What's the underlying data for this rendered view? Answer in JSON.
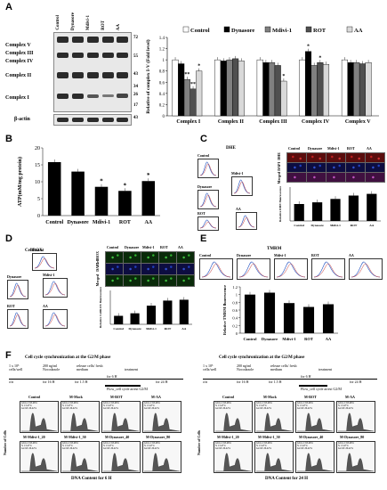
{
  "panels": {
    "a": "A",
    "b": "B",
    "c": "C",
    "d": "D",
    "e": "E",
    "f": "F"
  },
  "panelA": {
    "lanes": [
      "Control",
      "Dynasore",
      "Mdivi-1",
      "ROT",
      "AA"
    ],
    "complexes": [
      "Complex V",
      "Complex III",
      "Complex IV",
      "Complex II",
      "Complex I"
    ],
    "mw": [
      "72",
      "55",
      "43",
      "34",
      "26",
      "17",
      "43"
    ],
    "loading": "β-actin"
  },
  "chart_data": [
    {
      "type": "bar",
      "title": "",
      "ylabel": "Relative of complex I-V (Fold level)",
      "categories": [
        "Complex I",
        "Complex II",
        "Complex III",
        "Complex IV",
        "Complex V"
      ],
      "ylim": [
        0,
        1.4
      ],
      "yticks": [
        "0",
        "0.2",
        "0.4",
        "0.6",
        "0.8",
        "1",
        "1.2",
        "1.4"
      ],
      "legend": [
        "Control",
        "Dynasore",
        "Mdivi-1",
        "ROT",
        "AA"
      ],
      "series": [
        {
          "name": "Control",
          "values": [
            1.0,
            1.0,
            1.0,
            1.0,
            1.0
          ]
        },
        {
          "name": "Dynasore",
          "values": [
            0.93,
            0.98,
            0.95,
            1.15,
            0.95
          ]
        },
        {
          "name": "Mdivi-1",
          "values": [
            0.65,
            1.0,
            0.95,
            0.9,
            0.95
          ]
        },
        {
          "name": "ROT",
          "values": [
            0.48,
            1.02,
            0.9,
            0.95,
            0.93
          ]
        },
        {
          "name": "AA",
          "values": [
            0.8,
            0.98,
            0.62,
            0.92,
            0.95
          ]
        }
      ],
      "annotations": [
        "*",
        "**",
        "**",
        "*",
        "*",
        "*"
      ]
    },
    {
      "type": "bar",
      "ylabel": "ATP(mM/mg protein)",
      "categories": [
        "Control",
        "Dynasore",
        "Mdivi-1",
        "ROT",
        "AA"
      ],
      "values": [
        15.8,
        13.0,
        8.5,
        7.3,
        10.2
      ],
      "ylim": [
        0,
        20
      ],
      "yticks": [
        "0",
        "5",
        "10",
        "15",
        "20"
      ],
      "annotations": [
        "",
        "",
        "*",
        "*",
        "*"
      ]
    },
    {
      "type": "bar",
      "ylabel": "Relative DHE fluorescence",
      "categories": [
        "Control",
        "Dynasore",
        "Mdivi-1",
        "ROT",
        "AA"
      ],
      "values": [
        1.0,
        1.1,
        1.3,
        1.5,
        1.6
      ],
      "ylim": [
        0,
        2
      ]
    },
    {
      "type": "bar",
      "ylabel": "Relative CellROX fluorescence",
      "categories": [
        "Control",
        "Dynasore",
        "Mdivi-1",
        "ROT",
        "AA"
      ],
      "values": [
        1.0,
        1.3,
        2.2,
        2.8,
        2.9
      ],
      "ylim": [
        0,
        4
      ]
    },
    {
      "type": "bar",
      "ylabel": "Relative TMRM fluorescence",
      "categories": [
        "Control",
        "Dynasore",
        "Mdivi-1",
        "ROT",
        "AA"
      ],
      "values": [
        1.0,
        1.05,
        0.78,
        0.68,
        0.75
      ],
      "ylim": [
        0,
        1.2
      ],
      "yticks": [
        "0",
        "0.2",
        "0.4",
        "0.6",
        "0.8",
        "1",
        "1.2"
      ]
    }
  ],
  "panelC": {
    "label": "DHE",
    "flow": [
      "Control",
      "Dynasore",
      "Mdivi-1",
      "ROT",
      "AA"
    ],
    "rows": [
      "DHE",
      "DAPI",
      "Merged"
    ]
  },
  "panelD": {
    "label": "CellROX",
    "flow": [
      "Control",
      "Dynasore",
      "Mdivi-1",
      "ROT",
      "AA"
    ],
    "rows": [
      "CellROX",
      "DAPI",
      "Merged"
    ]
  },
  "panelE": {
    "label": "TMRM",
    "flow": [
      "Control",
      "Dynasore",
      "Mdivi-1",
      "ROT",
      "AA"
    ]
  },
  "panelF": {
    "title": "Cell cycle synchronization at the G2/M phase",
    "cells": "1 x 10⁵ cells/well",
    "noco": "200 ng/ml Nocodazole",
    "release": "release cells/ fresh medium",
    "treatment": "treatment",
    "t1": "for 16 H",
    "t2": "for 1.5 H",
    "t3": "for 24 H",
    "t6": "for 6 H",
    "flow_left": "Flow_cell cycle arrest G2/M",
    "flow_right": "Flow_cell cycle arrest G2/M",
    "on": "o/n",
    "ylabel": "Number of Cells",
    "xlabel_left": "DNA Content for 6 H",
    "xlabel_right": "DNA Content for 24 H",
    "left_top": [
      "Control",
      "M-Mock",
      "M-ROT",
      "M-AA"
    ],
    "left_bottom": [
      "M-Mdivi-1_20",
      "M-Mdivi-1_50",
      "M-Dynasore_40",
      "M-Dynasore_80"
    ],
    "right_top": [
      "Control",
      "M-Mock",
      "M-ROT",
      "M-AA"
    ],
    "right_bottom": [
      "M-Mdivi-1_20",
      "M-Mdivi-1_50",
      "M-Dynasore_40",
      "M-Dynasore_80"
    ],
    "stats": [
      "G0-G1: 63.46%",
      "S: 13.47%",
      "G2-M: 20.42%"
    ]
  },
  "colors": {
    "control": "#ffffff",
    "dynasore": "#000000",
    "mdivi": "#808080",
    "rot": "#505050",
    "aa": "#d9d9d9"
  }
}
